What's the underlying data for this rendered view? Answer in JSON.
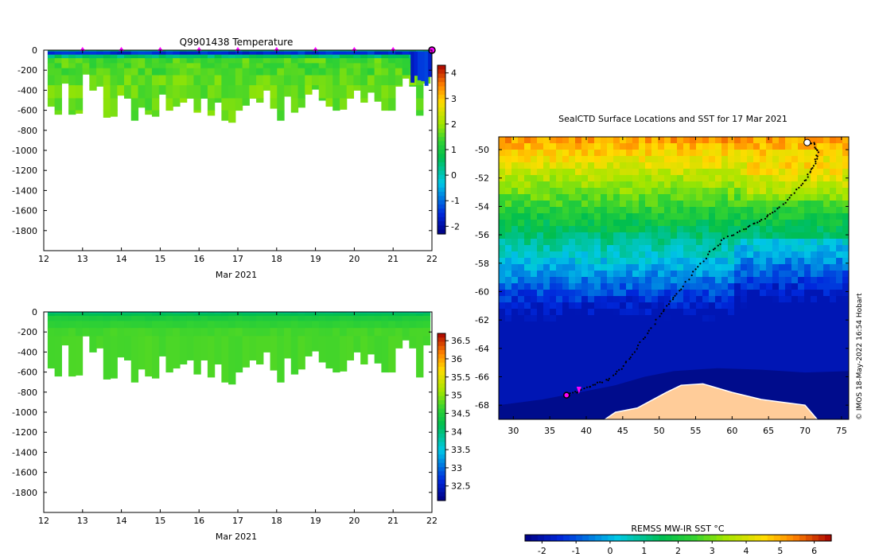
{
  "chart_data": [
    {
      "type": "heatmap",
      "title": "Q9901438  Temperature",
      "xlabel": "Mar 2021",
      "ylabel": "",
      "x_ticks": [
        "12",
        "13",
        "14",
        "15",
        "16",
        "17",
        "18",
        "19",
        "20",
        "21",
        "22"
      ],
      "y_ticks": [
        "0",
        "-200",
        "-400",
        "-600",
        "-800",
        "-1000",
        "-1200",
        "-1400",
        "-1600",
        "-1800"
      ],
      "xlim": [
        12,
        22
      ],
      "ylim": [
        -2000,
        0
      ],
      "colorbar_ticks": [
        "4",
        "3",
        "2",
        "1",
        "0",
        "-1",
        "-2"
      ],
      "colorbar_range": [
        -2.3,
        4.3
      ],
      "marker_days": [
        13,
        14,
        15,
        16,
        17,
        18,
        19,
        20,
        21
      ],
      "current_day": 22,
      "profile_bottoms_m": [
        560,
        640,
        330,
        640,
        630,
        240,
        400,
        360,
        670,
        660,
        450,
        480,
        700,
        570,
        640,
        660,
        440,
        600,
        560,
        520,
        480,
        620,
        480,
        650,
        520,
        700,
        720,
        600,
        550,
        480,
        520,
        400,
        580,
        700,
        460,
        620,
        570,
        440,
        390,
        500,
        560,
        600,
        590,
        480,
        400,
        520,
        420,
        510,
        600,
        600,
        360,
        280,
        360,
        650,
        330
      ]
    },
    {
      "type": "heatmap",
      "title": "",
      "xlabel": "Mar 2021",
      "ylabel": "",
      "x_ticks": [
        "12",
        "13",
        "14",
        "15",
        "16",
        "17",
        "18",
        "19",
        "20",
        "21",
        "22"
      ],
      "y_ticks": [
        "0",
        "-200",
        "-400",
        "-600",
        "-800",
        "-1000",
        "-1200",
        "-1400",
        "-1600",
        "-1800"
      ],
      "xlim": [
        12,
        22
      ],
      "ylim": [
        -2000,
        0
      ],
      "colorbar_ticks": [
        "36.5",
        "36",
        "35.5",
        "35",
        "34.5",
        "34",
        "33.5",
        "33",
        "32.5"
      ],
      "colorbar_range": [
        32.1,
        36.7
      ]
    },
    {
      "type": "heatmap",
      "title": "SealCTD Surface Locations and SST for 17 Mar 2021",
      "xlabel": "",
      "ylabel": "",
      "x_ticks": [
        "30",
        "35",
        "40",
        "45",
        "50",
        "55",
        "60",
        "65",
        "70",
        "75"
      ],
      "y_ticks": [
        "-50",
        "-52",
        "-54",
        "-56",
        "-58",
        "-60",
        "-62",
        "-64",
        "-66",
        "-68"
      ],
      "xlim": [
        28,
        76
      ],
      "ylim": [
        -69,
        -49.1
      ],
      "colorbar_label": "REMSS MW-IR SST °C",
      "colorbar_ticks": [
        "-2",
        "-1",
        "0",
        "1",
        "2",
        "3",
        "4",
        "5",
        "6"
      ],
      "colorbar_range": [
        -2.5,
        6.5
      ],
      "track": [
        [
          37.3,
          -67.3
        ],
        [
          39,
          -67
        ],
        [
          41,
          -66.6
        ],
        [
          43,
          -66.2
        ],
        [
          44.8,
          -65.4
        ],
        [
          46.3,
          -64.4
        ],
        [
          48,
          -63.2
        ],
        [
          50,
          -61.8
        ],
        [
          51.5,
          -60.7
        ],
        [
          53,
          -59.8
        ],
        [
          55,
          -58.4
        ],
        [
          57,
          -57.2
        ],
        [
          59,
          -56.3
        ],
        [
          61.5,
          -55.6
        ],
        [
          63.5,
          -55.1
        ],
        [
          65.3,
          -54.6
        ],
        [
          67.2,
          -53.7
        ],
        [
          69.2,
          -52.7
        ],
        [
          70.5,
          -51.8
        ],
        [
          71.4,
          -51
        ],
        [
          71.7,
          -50.2
        ],
        [
          71.3,
          -49.6
        ],
        [
          70.3,
          -49.5
        ]
      ],
      "track_start": [
        37.3,
        -67.3
      ],
      "track_end": [
        70.3,
        -49.5
      ],
      "credit": "© IMOS 18-May-2022 16:54 Hobart"
    }
  ]
}
